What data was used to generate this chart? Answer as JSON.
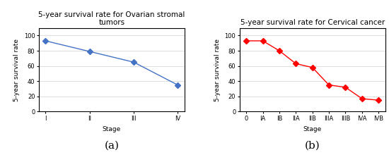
{
  "chart_a": {
    "title": "5-year survival rate for Ovarian stromal\ntumors",
    "x_labels": [
      "I",
      "II",
      "III",
      "IV"
    ],
    "y_values": [
      93,
      79,
      65,
      35
    ],
    "xlabel": "Stage",
    "ylabel": "5-year survival rate",
    "ylim": [
      0,
      110
    ],
    "yticks": [
      0,
      20,
      40,
      60,
      80,
      100
    ],
    "color": "#4472C4",
    "marker": "D",
    "marker_size": 4,
    "label": "(a)"
  },
  "chart_b": {
    "title": "5-year survival rate for Cervical cancer",
    "x_labels": [
      "0",
      "IA",
      "IB",
      "IIA",
      "IIB",
      "IIIA",
      "IIIB",
      "IVA",
      "IVB"
    ],
    "y_values": [
      93,
      93,
      80,
      63,
      58,
      35,
      32,
      17,
      15
    ],
    "xlabel": "Stage",
    "ylabel": "5-year survival rate",
    "ylim": [
      0,
      110
    ],
    "yticks": [
      0,
      20,
      40,
      60,
      80,
      100
    ],
    "color": "#FF0000",
    "marker": "D",
    "marker_size": 4,
    "label": "(b)"
  },
  "bg_color": "#FFFFFF",
  "title_fontsize": 7.5,
  "axis_label_fontsize": 6.5,
  "tick_fontsize": 6,
  "sublabel_fontsize": 11
}
